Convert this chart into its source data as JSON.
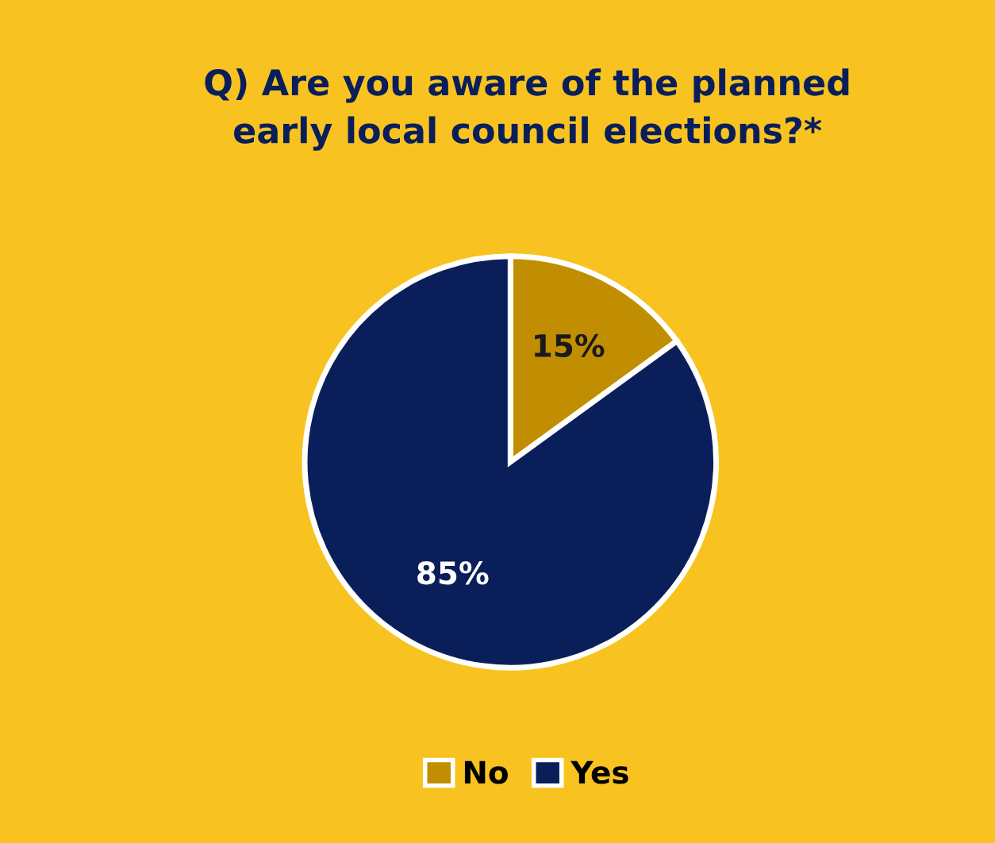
{
  "chart_data": {
    "type": "pie",
    "title": "Q) Are you aware of the planned\nearly local council elections?*",
    "categories": [
      "No",
      "Yes"
    ],
    "values": [
      15,
      85
    ],
    "colors": [
      "#c08e00",
      "#0a1f5a"
    ],
    "value_labels": [
      "15%",
      "85%"
    ],
    "legend": "bottom"
  }
}
